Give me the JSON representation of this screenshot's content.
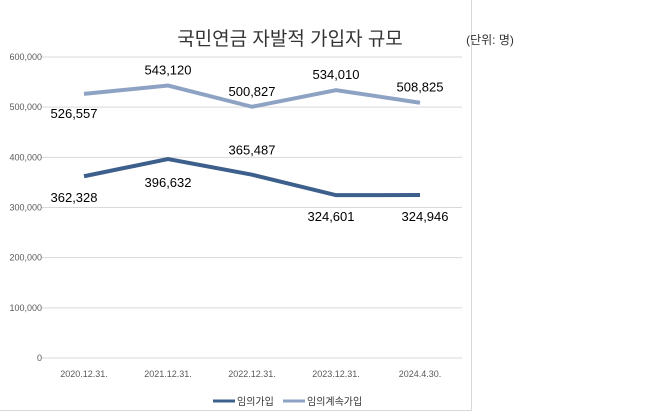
{
  "chart_data": {
    "type": "line",
    "title": "국민연금 자발적 가입자 규모",
    "unit": "(단위: 명)",
    "categories": [
      "2020.12.31.",
      "2021.12.31.",
      "2022.12.31.",
      "2023.12.31.",
      "2024.4.30."
    ],
    "yticks": [
      "0",
      "100,000",
      "200,000",
      "300,000",
      "400,000",
      "500,000",
      "600,000"
    ],
    "ylim": [
      0,
      600000
    ],
    "legend_position": "bottom",
    "series": [
      {
        "name": "임의가입",
        "color": "#3d5f8c",
        "values": [
          362328,
          396632,
          365487,
          324601,
          324946
        ],
        "labels": [
          "362,328",
          "396,632",
          "365,487",
          "324,601",
          "324,946"
        ]
      },
      {
        "name": "임의계속가입",
        "color": "#8ea3c4",
        "values": [
          526557,
          543120,
          500827,
          534010,
          508825
        ],
        "labels": [
          "526,557",
          "543,120",
          "500,827",
          "534,010",
          "508,825"
        ]
      }
    ]
  }
}
